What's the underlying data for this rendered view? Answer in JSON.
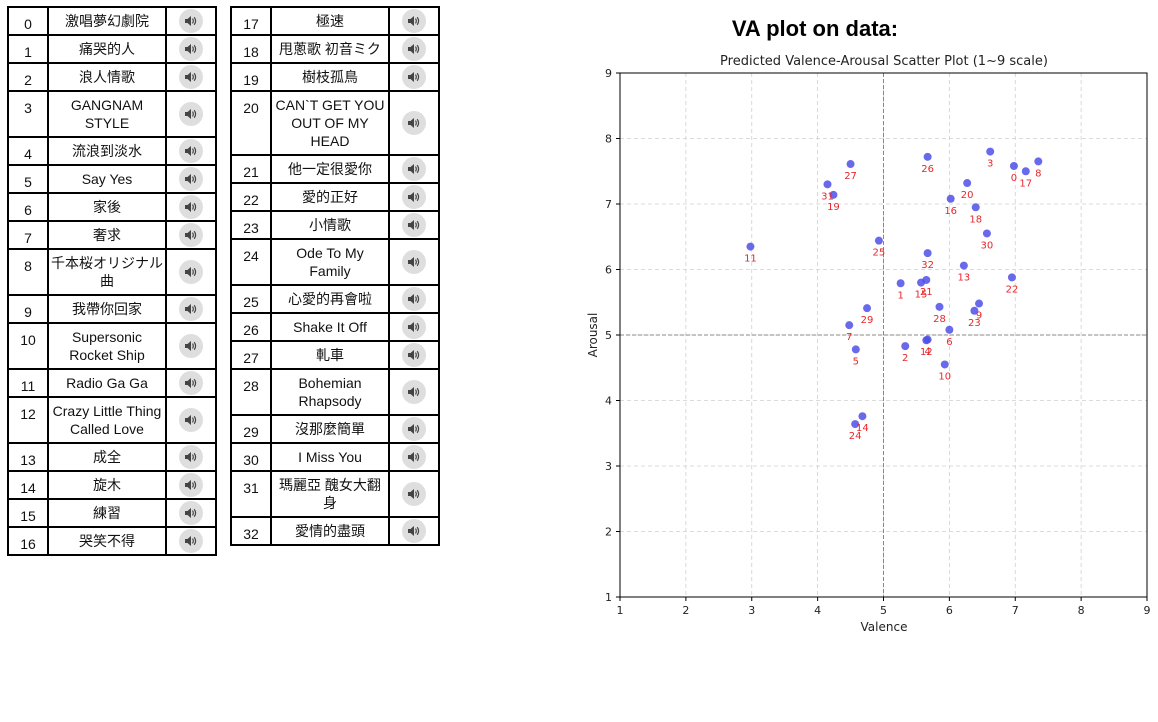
{
  "songs_left": [
    {
      "id": "0",
      "title": "激唱夢幻劇院"
    },
    {
      "id": "1",
      "title": "痛哭的人"
    },
    {
      "id": "2",
      "title": "浪人情歌"
    },
    {
      "id": "3",
      "title": "GANGNAM STYLE"
    },
    {
      "id": "4",
      "title": "流浪到淡水"
    },
    {
      "id": "5",
      "title": "Say Yes"
    },
    {
      "id": "6",
      "title": "家後"
    },
    {
      "id": "7",
      "title": "奢求"
    },
    {
      "id": "8",
      "title": "千本桜オリジナル曲"
    },
    {
      "id": "9",
      "title": "我帶你回家"
    },
    {
      "id": "10",
      "title": "Supersonic Rocket Ship"
    },
    {
      "id": "11",
      "title": "Radio Ga Ga"
    },
    {
      "id": "12",
      "title": "Crazy Little Thing Called Love"
    },
    {
      "id": "13",
      "title": "成全"
    },
    {
      "id": "14",
      "title": "旋木"
    },
    {
      "id": "15",
      "title": "練習"
    },
    {
      "id": "16",
      "title": "哭笑不得"
    }
  ],
  "songs_right": [
    {
      "id": "17",
      "title": "極速"
    },
    {
      "id": "18",
      "title": "甩蔥歌 初音ミク"
    },
    {
      "id": "19",
      "title": "樹枝孤鳥"
    },
    {
      "id": "20",
      "title": "CAN`T GET YOU OUT OF MY HEAD"
    },
    {
      "id": "21",
      "title": "他一定很愛你"
    },
    {
      "id": "22",
      "title": "愛的正好"
    },
    {
      "id": "23",
      "title": "小情歌"
    },
    {
      "id": "24",
      "title": "Ode To My Family"
    },
    {
      "id": "25",
      "title": "心愛的再會啦"
    },
    {
      "id": "26",
      "title": "Shake It Off"
    },
    {
      "id": "27",
      "title": "軋車"
    },
    {
      "id": "28",
      "title": "Bohemian Rhapsody"
    },
    {
      "id": "29",
      "title": "沒那麼簡單"
    },
    {
      "id": "30",
      "title": "I Miss You"
    },
    {
      "id": "31",
      "title": "瑪麗亞 醜女大翻身"
    },
    {
      "id": "32",
      "title": "愛情的盡頭"
    }
  ],
  "heading": "VA plot on data:",
  "colors": {
    "point": "#4f4fe8",
    "label": "#e8262b",
    "audio_bg": "#dedede"
  },
  "icons": {
    "audio": "speaker-icon"
  },
  "chart_data": {
    "type": "scatter",
    "title": "Predicted Valence-Arousal Scatter Plot (1~9 scale)",
    "xlabel": "Valence",
    "ylabel": "Arousal",
    "xlim": [
      1,
      9
    ],
    "ylim": [
      1,
      9
    ],
    "xticks": [
      "1",
      "2",
      "3",
      "4",
      "5",
      "6",
      "7",
      "8",
      "9"
    ],
    "yticks": [
      "1",
      "2",
      "3",
      "4",
      "5",
      "6",
      "7",
      "8",
      "9"
    ],
    "grid": true,
    "reference_lines": {
      "x": 5,
      "y": 5
    },
    "points": [
      {
        "label": "0",
        "x": 6.98,
        "y": 7.58
      },
      {
        "label": "1",
        "x": 5.26,
        "y": 5.79
      },
      {
        "label": "2",
        "x": 5.33,
        "y": 4.83
      },
      {
        "label": "3",
        "x": 6.62,
        "y": 7.8
      },
      {
        "label": "4",
        "x": 5.67,
        "y": 4.93
      },
      {
        "label": "5",
        "x": 4.58,
        "y": 4.78
      },
      {
        "label": "6",
        "x": 6.0,
        "y": 5.08
      },
      {
        "label": "7",
        "x": 4.48,
        "y": 5.15
      },
      {
        "label": "8",
        "x": 7.35,
        "y": 7.65
      },
      {
        "label": "9",
        "x": 6.45,
        "y": 5.48
      },
      {
        "label": "10",
        "x": 5.93,
        "y": 4.55
      },
      {
        "label": "11",
        "x": 2.98,
        "y": 6.35
      },
      {
        "label": "12",
        "x": 5.65,
        "y": 4.92
      },
      {
        "label": "13",
        "x": 6.22,
        "y": 6.06
      },
      {
        "label": "14",
        "x": 4.68,
        "y": 3.76
      },
      {
        "label": "15",
        "x": 5.57,
        "y": 5.8
      },
      {
        "label": "16",
        "x": 6.02,
        "y": 7.08
      },
      {
        "label": "17",
        "x": 7.16,
        "y": 7.5
      },
      {
        "label": "18",
        "x": 6.4,
        "y": 6.95
      },
      {
        "label": "19",
        "x": 4.24,
        "y": 7.14
      },
      {
        "label": "20",
        "x": 6.27,
        "y": 7.32
      },
      {
        "label": "21",
        "x": 5.65,
        "y": 5.84
      },
      {
        "label": "22",
        "x": 6.95,
        "y": 5.88
      },
      {
        "label": "23",
        "x": 6.38,
        "y": 5.37
      },
      {
        "label": "24",
        "x": 4.57,
        "y": 3.64
      },
      {
        "label": "25",
        "x": 4.93,
        "y": 6.44
      },
      {
        "label": "26",
        "x": 5.67,
        "y": 7.72
      },
      {
        "label": "27",
        "x": 4.5,
        "y": 7.61
      },
      {
        "label": "28",
        "x": 5.85,
        "y": 5.43
      },
      {
        "label": "29",
        "x": 4.75,
        "y": 5.41
      },
      {
        "label": "30",
        "x": 6.57,
        "y": 6.55
      },
      {
        "label": "31",
        "x": 4.15,
        "y": 7.3
      },
      {
        "label": "32",
        "x": 5.67,
        "y": 6.25
      }
    ]
  }
}
